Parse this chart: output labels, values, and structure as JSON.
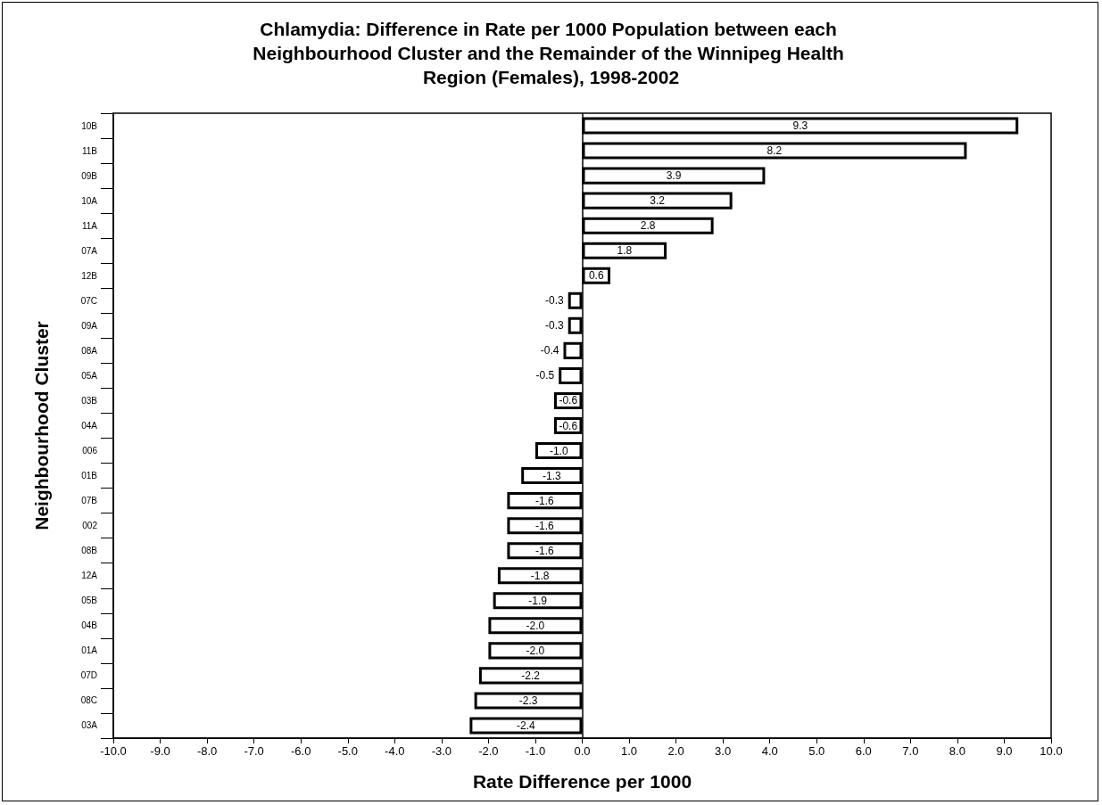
{
  "chart_data": {
    "type": "bar",
    "orientation": "horizontal",
    "title": "Chlamydia: Difference in Rate per 1000 Population between each Neighbourhood Cluster and the Remainder of the Winnipeg Health Region (Females), 1998-2002",
    "xlabel": "Rate Difference per 1000",
    "ylabel": "Neighbourhood Cluster",
    "categories": [
      "10B",
      "11B",
      "09B",
      "10A",
      "11A",
      "07A",
      "12B",
      "07C",
      "09A",
      "08A",
      "05A",
      "03B",
      "04A",
      "006",
      "01B",
      "07B",
      "002",
      "08B",
      "12A",
      "05B",
      "04B",
      "01A",
      "07D",
      "08C",
      "03A"
    ],
    "values": [
      9.3,
      8.2,
      3.9,
      3.2,
      2.8,
      1.8,
      0.6,
      -0.3,
      -0.3,
      -0.4,
      -0.5,
      -0.6,
      -0.6,
      -1.0,
      -1.3,
      -1.6,
      -1.6,
      -1.6,
      -1.8,
      -1.9,
      -2.0,
      -2.0,
      -2.2,
      -2.3,
      -2.4
    ],
    "value_labels": [
      "9.3",
      "8.2",
      "3.9",
      "3.2",
      "2.8",
      "1.8",
      "0.6",
      "-0.3",
      "-0.3",
      "-0.4",
      "-0.5",
      "-0.6",
      "-0.6",
      "-1.0",
      "-1.3",
      "-1.6",
      "-1.6",
      "-1.6",
      "-1.8",
      "-1.9",
      "-2.0",
      "-2.0",
      "-2.2",
      "-2.3",
      "-2.4"
    ],
    "color": "#ffffff",
    "xlim": [
      -10,
      10
    ],
    "xticks": [
      {
        "value": -10,
        "label": "-10.0"
      },
      {
        "value": -9,
        "label": "-9.0"
      },
      {
        "value": -8,
        "label": "-8.0"
      },
      {
        "value": -7,
        "label": "-7.0"
      },
      {
        "value": -6,
        "label": "-6.0"
      },
      {
        "value": -5,
        "label": "-5.0"
      },
      {
        "value": -4,
        "label": "-4.0"
      },
      {
        "value": -3,
        "label": "-3.0"
      },
      {
        "value": -2,
        "label": "-2.0"
      },
      {
        "value": -1,
        "label": "-1.0"
      },
      {
        "value": 0,
        "label": "0.0"
      },
      {
        "value": 1,
        "label": "1.0"
      },
      {
        "value": 2,
        "label": "2.0"
      },
      {
        "value": 3,
        "label": "3.0"
      },
      {
        "value": 4,
        "label": "4.0"
      },
      {
        "value": 5,
        "label": "5.0"
      },
      {
        "value": 6,
        "label": "6.0"
      },
      {
        "value": 7,
        "label": "7.0"
      },
      {
        "value": 8,
        "label": "8.0"
      },
      {
        "value": 9,
        "label": "9.0"
      },
      {
        "value": 10,
        "label": "10.0"
      }
    ],
    "ref_lines": [
      {
        "axis": "x",
        "value": 0,
        "color": "#000000"
      }
    ],
    "grid": false
  }
}
